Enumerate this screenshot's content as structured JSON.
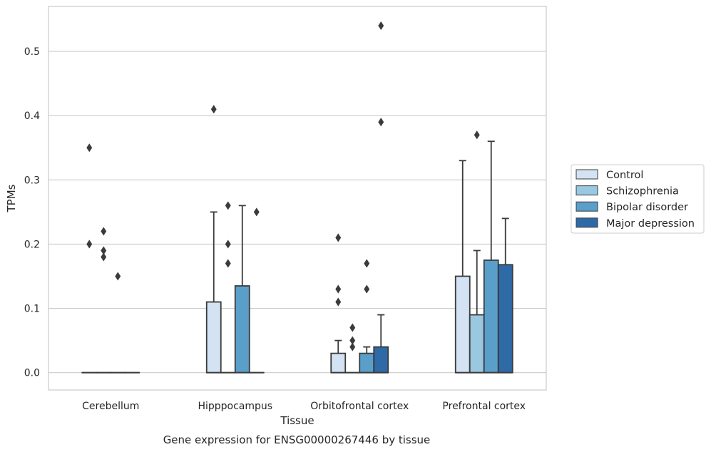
{
  "caption": "Gene expression for ENSG00000267446 by tissue",
  "chart_data": {
    "type": "box",
    "xlabel": "Tissue",
    "ylabel": "TPMs",
    "ylim": [
      -0.027,
      0.57
    ],
    "yticks": [
      0.0,
      0.1,
      0.2,
      0.3,
      0.4,
      0.5
    ],
    "ytick_labels": [
      "0.0",
      "0.1",
      "0.2",
      "0.3",
      "0.4",
      "0.5"
    ],
    "grid": "horizontal",
    "legend_position": "outside-right",
    "categories": [
      "Cerebellum",
      "Hipppocampus",
      "Orbitofrontal cortex",
      "Prefrontal cortex"
    ],
    "series": [
      {
        "name": "Control",
        "color": "#d3e3f3",
        "boxes": [
          {
            "q1": 0,
            "median": 0,
            "q3": 0,
            "whisker_low": 0,
            "whisker_high": 0,
            "outliers": [
              0.35,
              0.2
            ]
          },
          {
            "q1": 0,
            "median": 0,
            "q3": 0.11,
            "whisker_low": 0,
            "whisker_high": 0.25,
            "outliers": [
              0.41
            ]
          },
          {
            "q1": 0,
            "median": 0,
            "q3": 0.03,
            "whisker_low": 0,
            "whisker_high": 0.05,
            "outliers": [
              0.21,
              0.13,
              0.11
            ]
          },
          {
            "q1": 0,
            "median": 0,
            "q3": 0.15,
            "whisker_low": 0,
            "whisker_high": 0.33,
            "outliers": []
          }
        ]
      },
      {
        "name": "Schizophrenia",
        "color": "#9ac8e0",
        "boxes": [
          {
            "q1": 0,
            "median": 0,
            "q3": 0,
            "whisker_low": 0,
            "whisker_high": 0,
            "outliers": [
              0.22,
              0.19,
              0.18
            ]
          },
          {
            "q1": 0,
            "median": 0,
            "q3": 0,
            "whisker_low": 0,
            "whisker_high": 0,
            "outliers": [
              0.26,
              0.2,
              0.17
            ]
          },
          {
            "q1": 0,
            "median": 0,
            "q3": 0,
            "whisker_low": 0,
            "whisker_high": 0,
            "outliers": [
              0.07,
              0.05,
              0.04
            ]
          },
          {
            "q1": 0,
            "median": 0,
            "q3": 0.09,
            "whisker_low": 0,
            "whisker_high": 0.19,
            "outliers": [
              0.37
            ]
          }
        ]
      },
      {
        "name": "Bipolar disorder",
        "color": "#5a9fca",
        "boxes": [
          {
            "q1": 0,
            "median": 0,
            "q3": 0,
            "whisker_low": 0,
            "whisker_high": 0,
            "outliers": [
              0.15
            ]
          },
          {
            "q1": 0,
            "median": 0,
            "q3": 0.135,
            "whisker_low": 0,
            "whisker_high": 0.26,
            "outliers": []
          },
          {
            "q1": 0,
            "median": 0,
            "q3": 0.03,
            "whisker_low": 0,
            "whisker_high": 0.04,
            "outliers": [
              0.17,
              0.13
            ]
          },
          {
            "q1": 0,
            "median": 0,
            "q3": 0.175,
            "whisker_low": 0,
            "whisker_high": 0.36,
            "outliers": []
          }
        ]
      },
      {
        "name": "Major depression",
        "color": "#2d6aa6",
        "boxes": [
          {
            "q1": 0,
            "median": 0,
            "q3": 0,
            "whisker_low": 0,
            "whisker_high": 0,
            "outliers": []
          },
          {
            "q1": 0,
            "median": 0,
            "q3": 0,
            "whisker_low": 0,
            "whisker_high": 0,
            "outliers": [
              0.25
            ]
          },
          {
            "q1": 0,
            "median": 0,
            "q3": 0.04,
            "whisker_low": 0,
            "whisker_high": 0.09,
            "outliers": [
              0.54,
              0.39
            ]
          },
          {
            "q1": 0,
            "median": 0,
            "q3": 0.168,
            "whisker_low": 0,
            "whisker_high": 0.24,
            "outliers": []
          }
        ]
      }
    ]
  }
}
